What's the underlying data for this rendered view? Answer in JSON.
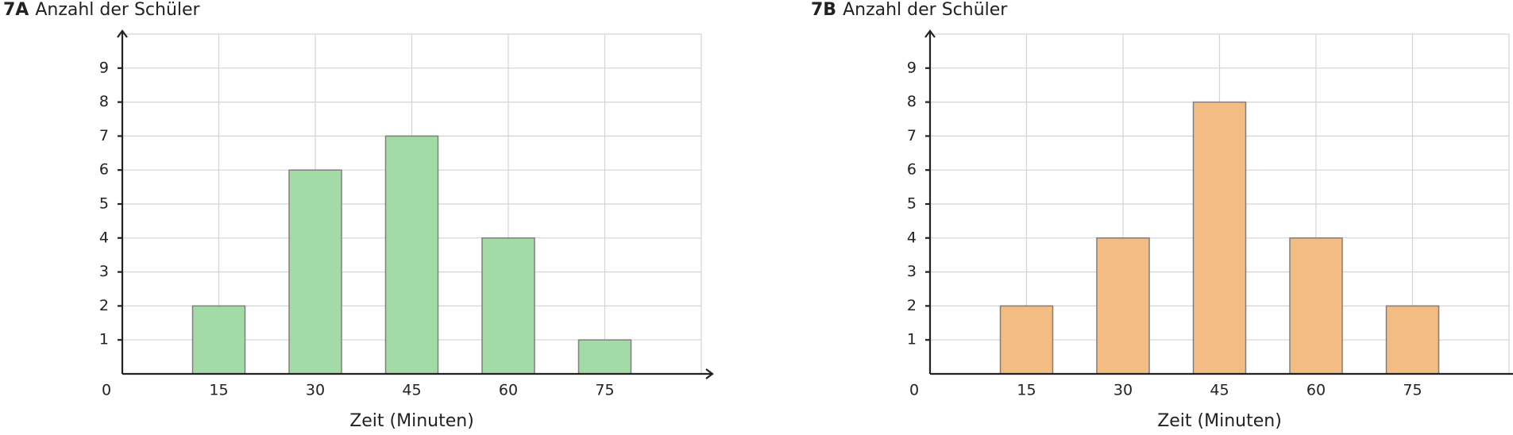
{
  "chart_data": [
    {
      "type": "bar",
      "label": "7A",
      "title": "Anzahl der Schüler",
      "xlabel": "Zeit (Minuten)",
      "x": [
        15,
        30,
        45,
        60,
        75
      ],
      "values": [
        2,
        6,
        7,
        4,
        1
      ],
      "color": "#a3dba6",
      "xlim": [
        0,
        90
      ],
      "xticks": [
        0,
        15,
        30,
        45,
        60,
        75
      ],
      "ylim": [
        0,
        10
      ],
      "yticks": [
        1,
        2,
        3,
        4,
        5,
        6,
        7,
        8,
        9
      ],
      "grid": true
    },
    {
      "type": "bar",
      "label": "7B",
      "title": "Anzahl der Schüler",
      "xlabel": "Zeit (Minuten)",
      "x": [
        15,
        30,
        45,
        60,
        75
      ],
      "values": [
        2,
        4,
        8,
        4,
        2
      ],
      "color": "#f2bc83",
      "xlim": [
        0,
        90
      ],
      "xticks": [
        0,
        15,
        30,
        45,
        60,
        75
      ],
      "ylim": [
        0,
        10
      ],
      "yticks": [
        1,
        2,
        3,
        4,
        5,
        6,
        7,
        8,
        9
      ],
      "grid": true
    }
  ]
}
